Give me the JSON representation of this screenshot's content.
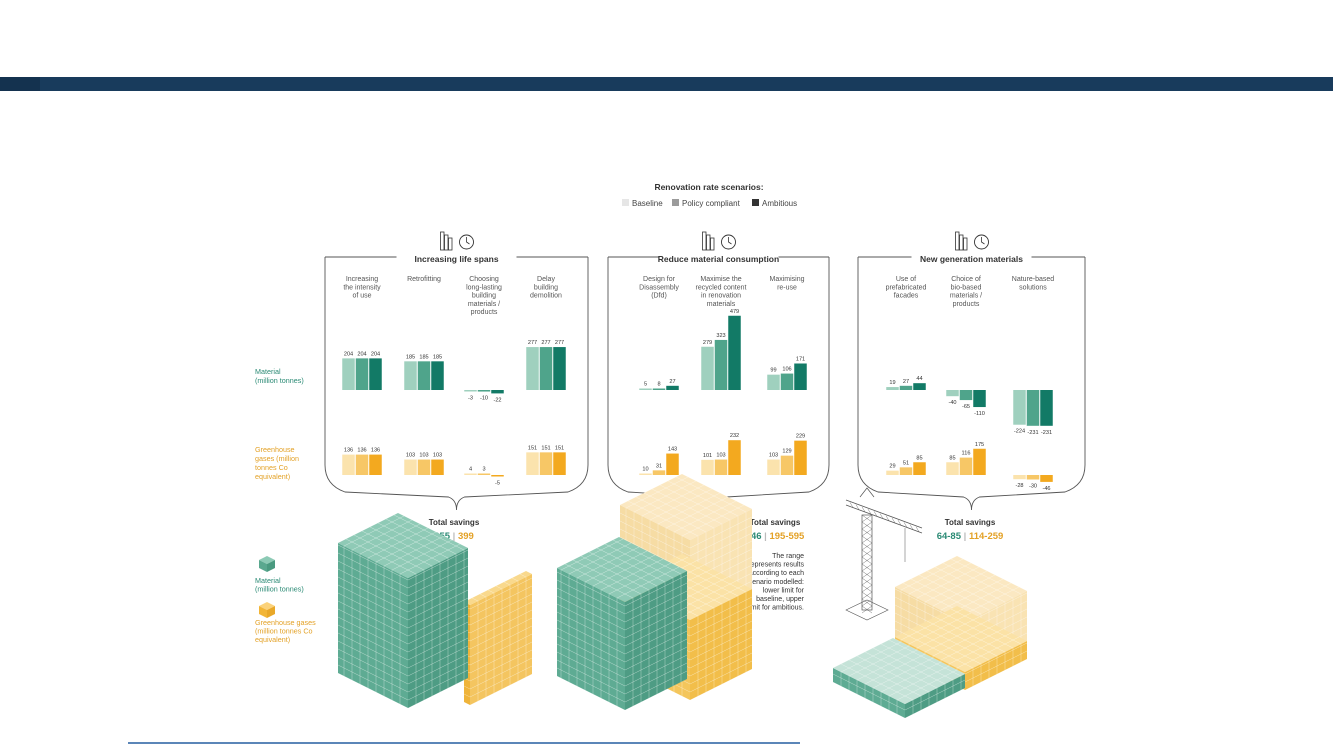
{
  "legend": {
    "title": "Renovation rate scenarios:",
    "items": [
      {
        "label": "Baseline",
        "color": "#e6e6e6"
      },
      {
        "label": "Policy compliant",
        "color": "#9b9b9b"
      },
      {
        "label": "Ambitious",
        "color": "#333333"
      }
    ]
  },
  "row_labels": {
    "material": [
      "Material",
      "(million tonnes)"
    ],
    "ghg": [
      "Greenhouse",
      "gases (million",
      "tonnes Co",
      "equivalent)"
    ]
  },
  "colors": {
    "material": [
      "#9fd0be",
      "#4fa48b",
      "#127a66"
    ],
    "ghg": [
      "#fbe3ad",
      "#f7c766",
      "#f3a91f"
    ],
    "material_cube": "#6fb7a2",
    "ghg_cube": "#f6c65f",
    "material_cube_light": "#c5e3d8",
    "ghg_cube_light": "#fbe8c2"
  },
  "groups": [
    {
      "title": "Increasing life spans",
      "icon_names": [
        "building-icon",
        "clock-icon"
      ],
      "savings_label": "Total savings",
      "savings_material": "655",
      "savings_ghg": "399",
      "strategies": [
        {
          "label": [
            "Increasing",
            "the intensity",
            "of use"
          ],
          "material": [
            204,
            204,
            204
          ],
          "ghg": [
            136,
            136,
            136
          ]
        },
        {
          "label": [
            "Retrofitting"
          ],
          "material": [
            185,
            185,
            185
          ],
          "ghg": [
            103,
            103,
            103
          ]
        },
        {
          "label": [
            "Choosing",
            "long-lasting",
            "building",
            "materials /",
            "products"
          ],
          "material": [
            -3,
            -10,
            -22
          ],
          "ghg": [
            4,
            3,
            -5
          ]
        },
        {
          "label": [
            "Delay",
            "building",
            "demolition"
          ],
          "material": [
            277,
            277,
            277
          ],
          "ghg": [
            151,
            151,
            151
          ]
        }
      ]
    },
    {
      "title": "Reduce material consumption",
      "icon_names": [
        "modules-icon",
        "recycle-icon"
      ],
      "savings_label": "Total savings",
      "savings_material": "346",
      "savings_ghg": "195-595",
      "strategies": [
        {
          "label": [
            "Design for",
            "Disassembly",
            "(Dfd)"
          ],
          "material": [
            5,
            8,
            27
          ],
          "ghg": [
            10,
            31,
            143
          ]
        },
        {
          "label": [
            "Maximise the",
            "recycled content",
            "in renovation",
            "materials"
          ],
          "material": [
            279,
            323,
            479
          ],
          "ghg": [
            101,
            103,
            232
          ]
        },
        {
          "label": [
            "Maximising",
            "re-use"
          ],
          "material": [
            99,
            106,
            171
          ],
          "ghg": [
            103,
            129,
            229
          ]
        }
      ]
    },
    {
      "title": "New generation materials",
      "icon_names": [
        "molecule-icon",
        "bio-house-icon"
      ],
      "savings_label": "Total savings",
      "savings_material": "64-85",
      "savings_ghg": "114-259",
      "strategies": [
        {
          "label": [
            "Use of",
            "prefabricated",
            "facades"
          ],
          "material": [
            19,
            27,
            44
          ],
          "ghg": [
            29,
            51,
            85
          ]
        },
        {
          "label": [
            "Choice of",
            "bio-based",
            "materials /",
            "products"
          ],
          "material": [
            -40,
            -65,
            -110
          ],
          "ghg": [
            85,
            116,
            175
          ]
        },
        {
          "label": [
            "Nature-based",
            "solutions"
          ],
          "material": [
            -224,
            -231,
            -231
          ],
          "ghg": [
            -28,
            -30,
            -46
          ]
        }
      ]
    }
  ],
  "range_note": [
    "The range",
    "represents results",
    "according to each",
    "scenario modelled:",
    "lower limit for",
    "baseline, upper",
    "limit for ambitious."
  ],
  "cube_legend": {
    "material": [
      "Material",
      "(million tonnes)"
    ],
    "ghg": [
      "Greenhouse gases",
      "(million tonnes Co",
      "equivalent)"
    ]
  },
  "chart_data": {
    "type": "bar",
    "title": "",
    "legend_title": "Renovation rate scenarios:",
    "series_names": [
      "Baseline",
      "Policy compliant",
      "Ambitious"
    ],
    "categories": [
      "Increasing the intensity of use",
      "Retrofitting",
      "Choosing long-lasting building materials / products",
      "Delay building demolition",
      "Design for Disassembly (Dfd)",
      "Maximise the recycled content in renovation materials",
      "Maximising re-use",
      "Use of prefabricated facades",
      "Choice of bio-based materials / products",
      "Nature-based solutions"
    ],
    "material_series": [
      {
        "name": "Baseline",
        "values": [
          204,
          185,
          -3,
          277,
          5,
          279,
          99,
          19,
          -40,
          -224
        ]
      },
      {
        "name": "Policy compliant",
        "values": [
          204,
          185,
          -10,
          277,
          8,
          323,
          106,
          27,
          -65,
          -231
        ]
      },
      {
        "name": "Ambitious",
        "values": [
          204,
          185,
          -22,
          277,
          27,
          479,
          171,
          44,
          -110,
          -231
        ]
      }
    ],
    "ghg_series": [
      {
        "name": "Baseline",
        "values": [
          136,
          103,
          4,
          151,
          10,
          101,
          103,
          29,
          85,
          -28
        ]
      },
      {
        "name": "Policy compliant",
        "values": [
          136,
          103,
          3,
          151,
          31,
          103,
          129,
          51,
          116,
          -30
        ]
      },
      {
        "name": "Ambitious",
        "values": [
          136,
          103,
          -5,
          151,
          143,
          232,
          229,
          85,
          175,
          -46
        ]
      }
    ]
  }
}
